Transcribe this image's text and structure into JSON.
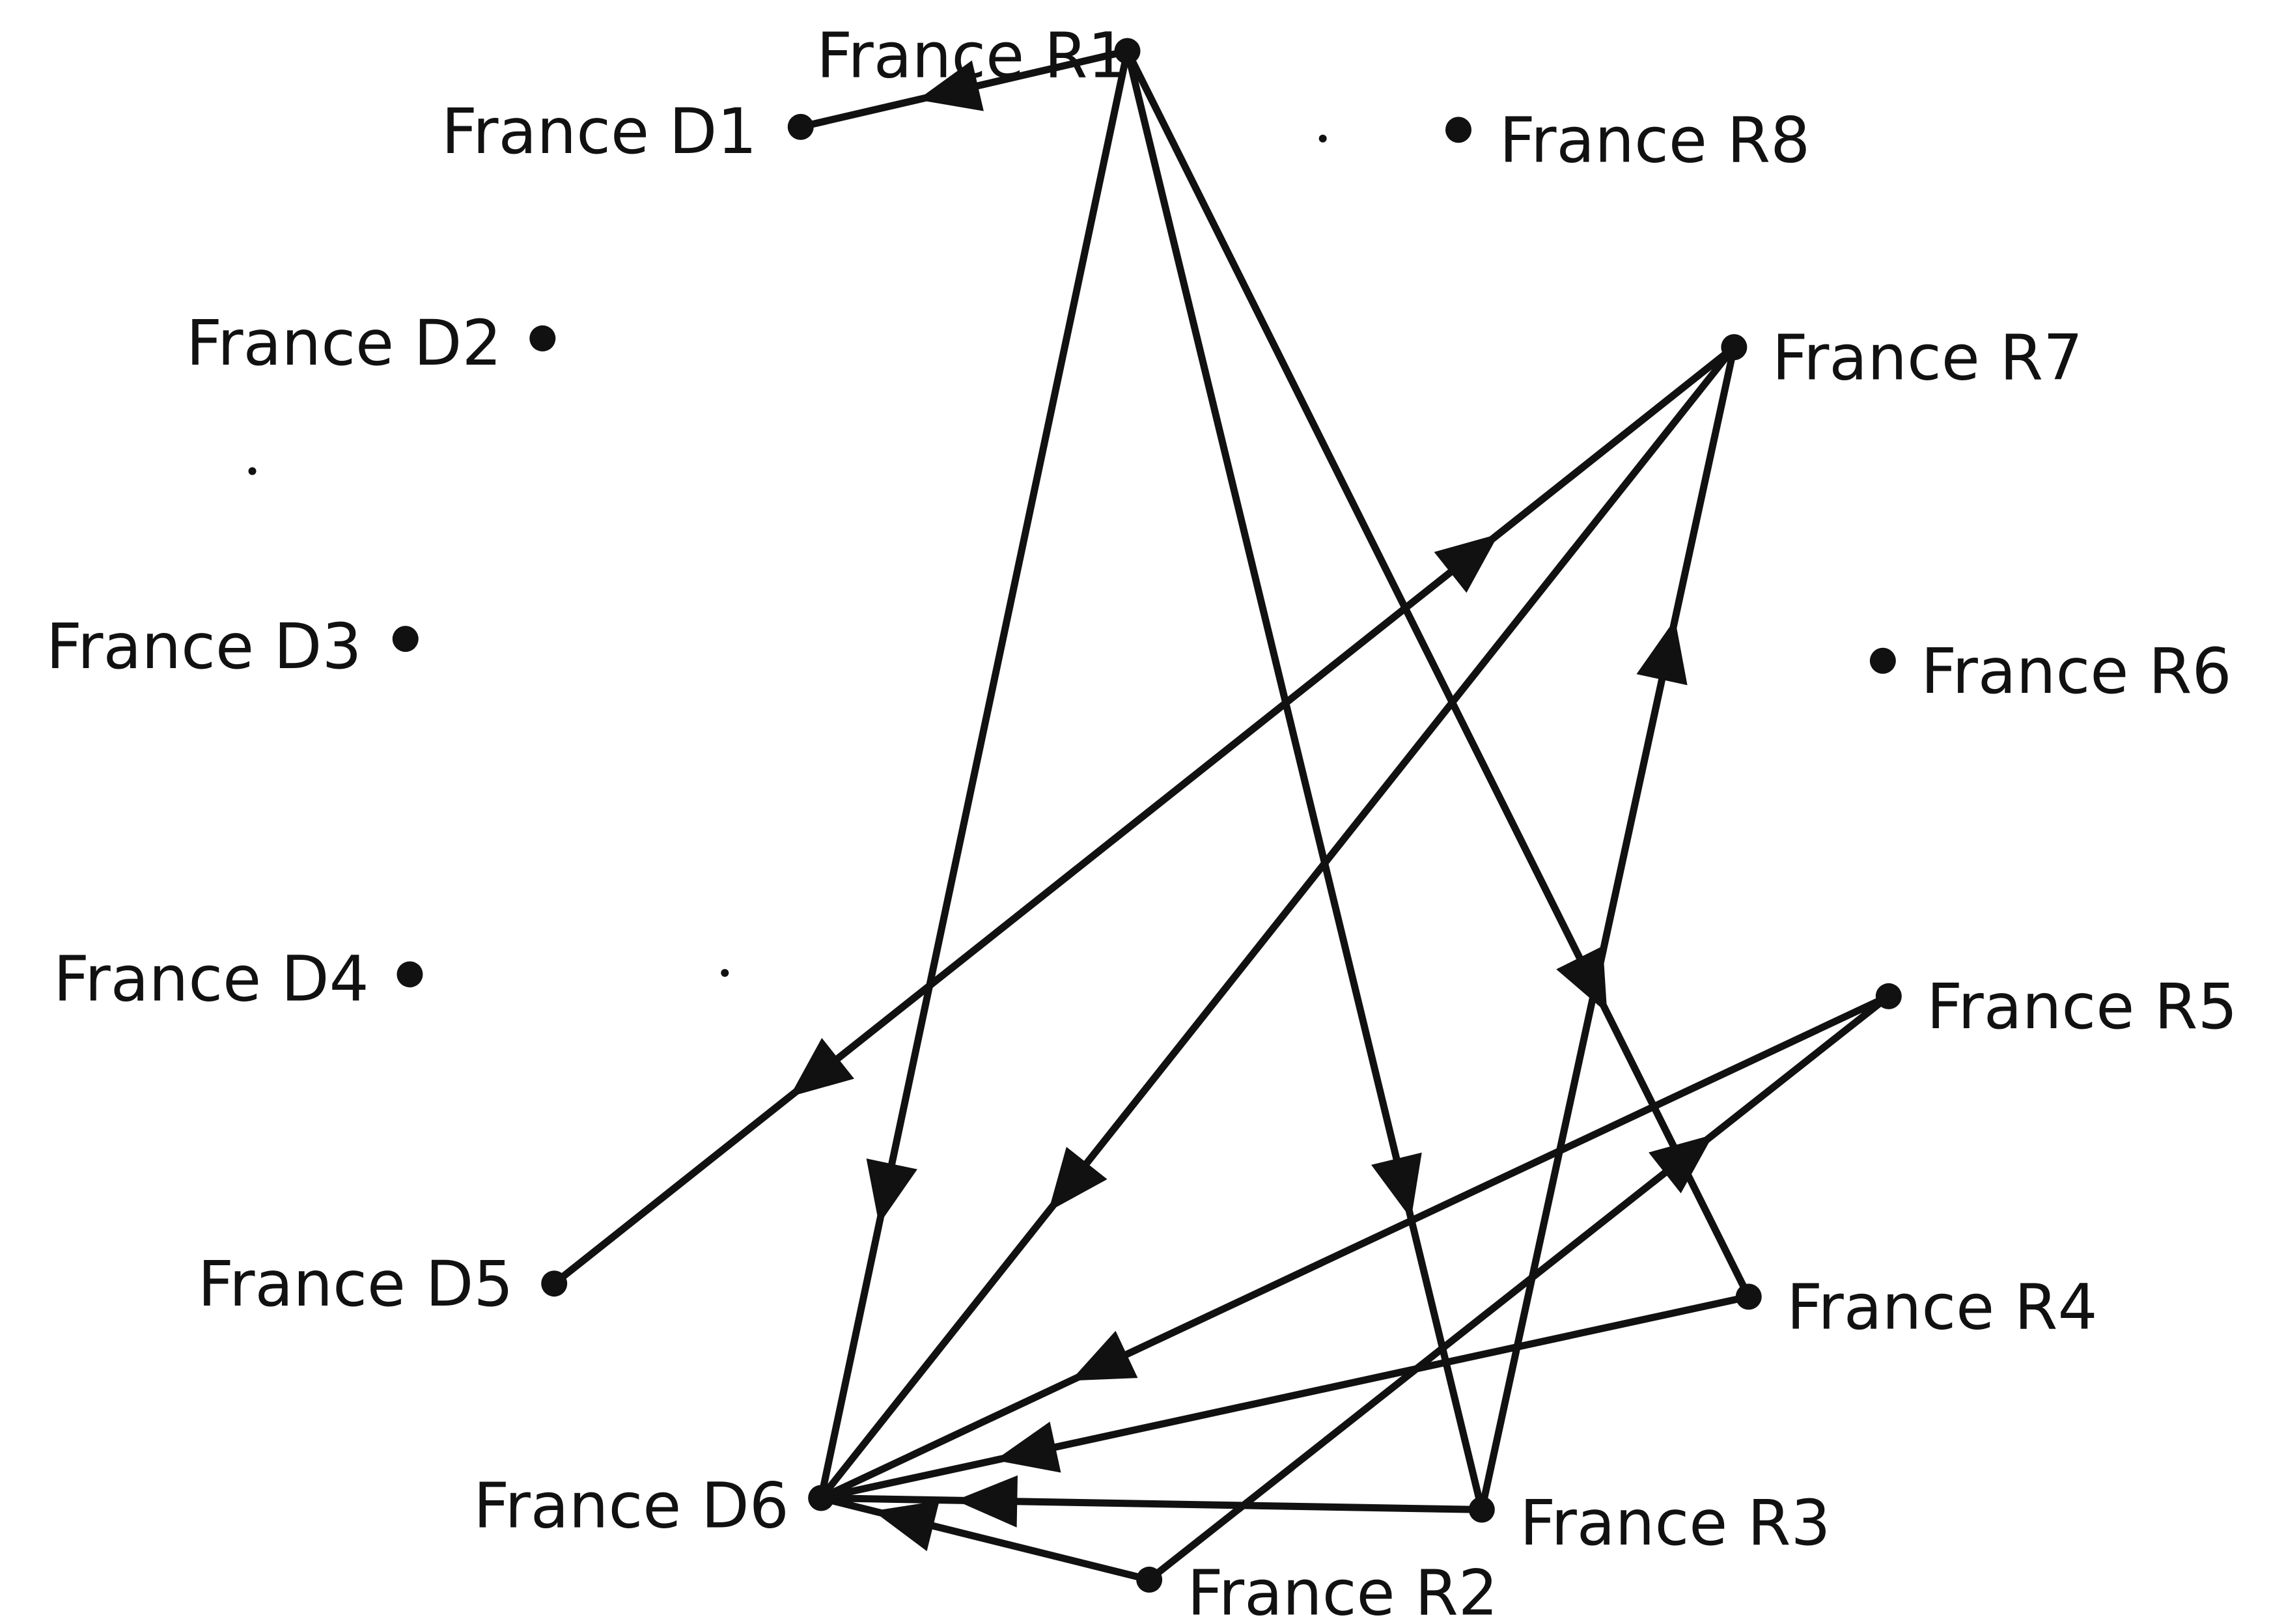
{
  "nodes": [
    {
      "id": "D1",
      "label": "France D1"
    },
    {
      "id": "D2",
      "label": "France D2"
    },
    {
      "id": "D3",
      "label": "France D3"
    },
    {
      "id": "D4",
      "label": "France D4"
    },
    {
      "id": "D5",
      "label": "France D5"
    },
    {
      "id": "D6",
      "label": "France D6"
    },
    {
      "id": "R1",
      "label": "France R1"
    },
    {
      "id": "R2",
      "label": "France R2"
    },
    {
      "id": "R3",
      "label": "France R3"
    },
    {
      "id": "R4",
      "label": "France R4"
    },
    {
      "id": "R5",
      "label": "France R5"
    },
    {
      "id": "R6",
      "label": "France R6"
    },
    {
      "id": "R7",
      "label": "France R7"
    },
    {
      "id": "R8",
      "label": "France R8"
    }
  ],
  "edges": [
    {
      "from": "R1",
      "to": "D1"
    },
    {
      "from": "R1",
      "to": "D6"
    },
    {
      "from": "R1",
      "to": "R3"
    },
    {
      "from": "R1",
      "to": "R4"
    },
    {
      "from": "R7",
      "to": "D5"
    },
    {
      "from": "D5",
      "to": "R7"
    },
    {
      "from": "R7",
      "to": "D6"
    },
    {
      "from": "R3",
      "to": "R7"
    },
    {
      "from": "R5",
      "to": "D6"
    },
    {
      "from": "R2",
      "to": "R5"
    },
    {
      "from": "R4",
      "to": "D6"
    },
    {
      "from": "R3",
      "to": "D6"
    },
    {
      "from": "R2",
      "to": "D6"
    }
  ]
}
